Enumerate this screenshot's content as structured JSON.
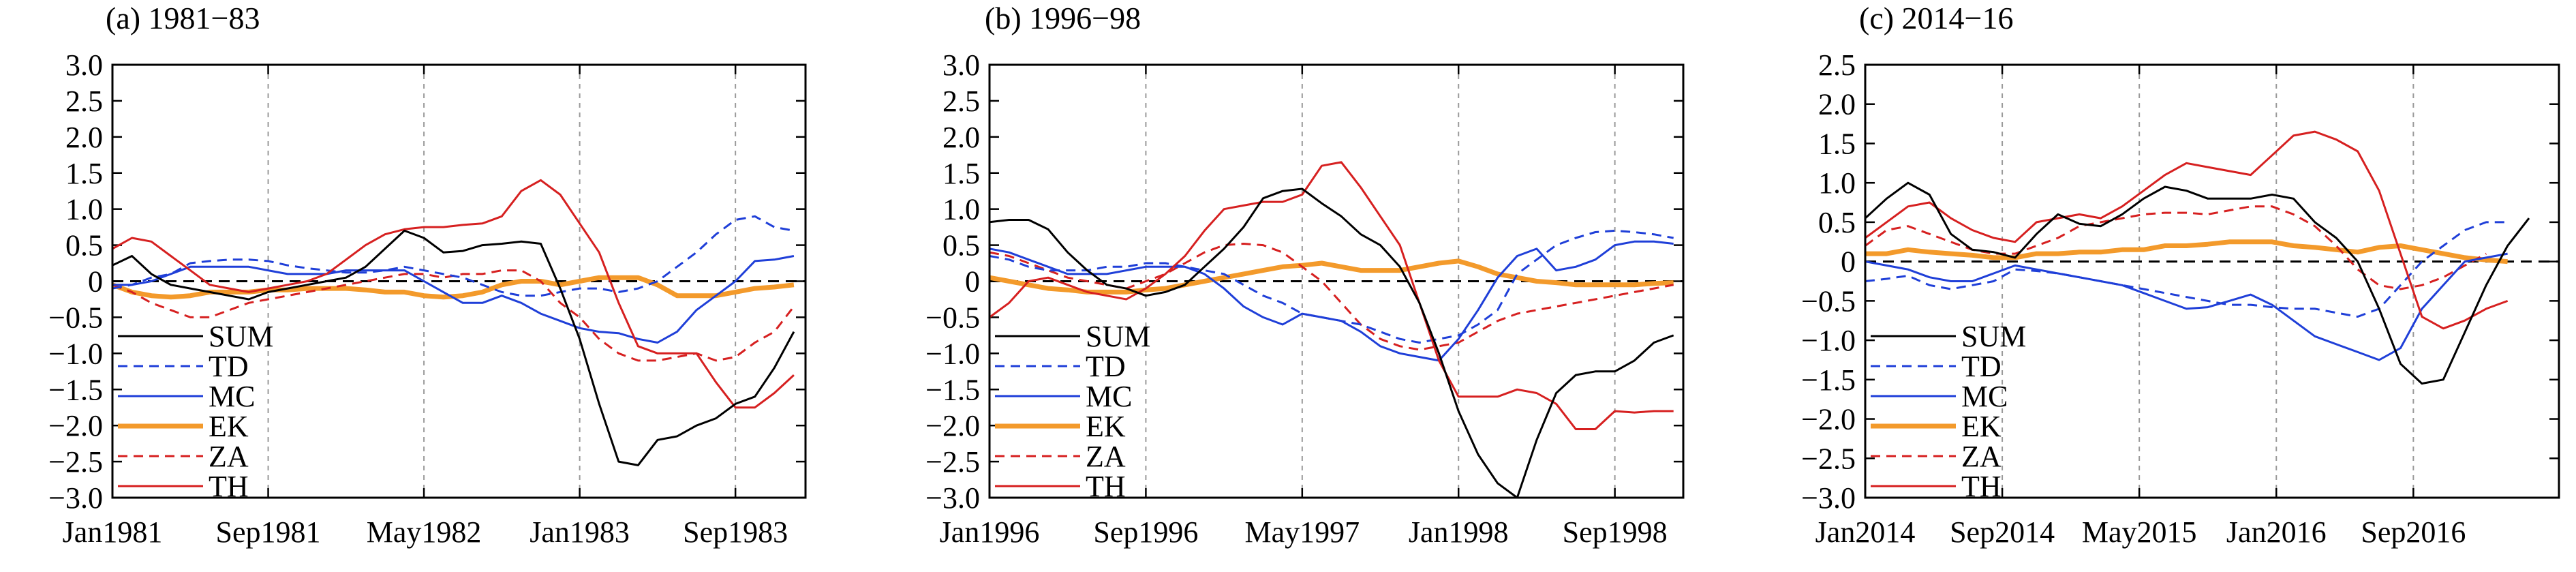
{
  "chart_data": [
    {
      "type": "line",
      "title": "(a) 1981−83",
      "x_start_month": 0,
      "x_end_month": 35.6,
      "xticks": [
        {
          "m": 0,
          "label": "Jan1981"
        },
        {
          "m": 8,
          "label": "Sep1981"
        },
        {
          "m": 16,
          "label": "May1982"
        },
        {
          "m": 24,
          "label": "Jan1983"
        },
        {
          "m": 32,
          "label": "Sep1983"
        }
      ],
      "ylim": [
        -3.0,
        3.0
      ],
      "yticks": [
        "3.0",
        "2.5",
        "2.0",
        "1.5",
        "1.0",
        "0.5",
        "0",
        "−0.5",
        "−1.0",
        "−1.5",
        "−2.0",
        "−2.5",
        "−3.0"
      ],
      "ytick_values": [
        3.0,
        2.5,
        2.0,
        1.5,
        1.0,
        0.5,
        0,
        -0.5,
        -1.0,
        -1.5,
        -2.0,
        -2.5,
        -3.0
      ],
      "series": [
        {
          "name": "SUM",
          "values": [
            0.22,
            0.35,
            0.1,
            -0.05,
            -0.1,
            -0.15,
            -0.2,
            -0.25,
            -0.15,
            -0.1,
            -0.05,
            0,
            0.05,
            0.2,
            0.45,
            0.7,
            0.6,
            0.4,
            0.42,
            0.5,
            0.52,
            0.55,
            0.52,
            -0.1,
            -0.8,
            -1.7,
            -2.5,
            -2.55,
            -2.2,
            -2.15,
            -2.0,
            -1.9,
            -1.7,
            -1.6,
            -1.2,
            -0.7
          ]
        },
        {
          "name": "TD",
          "values": [
            -0.1,
            -0.05,
            0.05,
            0.1,
            0.25,
            0.28,
            0.3,
            0.3,
            0.28,
            0.22,
            0.18,
            0.15,
            0.12,
            0.12,
            0.15,
            0.2,
            0.15,
            0.1,
            0.05,
            -0.05,
            -0.15,
            -0.2,
            -0.2,
            -0.15,
            -0.1,
            -0.1,
            -0.15,
            -0.1,
            0,
            0.2,
            0.4,
            0.65,
            0.85,
            0.9,
            0.75,
            0.7
          ]
        },
        {
          "name": "MC",
          "values": [
            -0.05,
            -0.05,
            0,
            0.1,
            0.2,
            0.2,
            0.2,
            0.2,
            0.15,
            0.1,
            0.1,
            0.1,
            0.15,
            0.15,
            0.15,
            0.15,
            0,
            -0.15,
            -0.3,
            -0.3,
            -0.2,
            -0.3,
            -0.45,
            -0.55,
            -0.65,
            -0.7,
            -0.72,
            -0.8,
            -0.85,
            -0.7,
            -0.4,
            -0.2,
            0,
            0.28,
            0.3,
            0.35
          ]
        },
        {
          "name": "EK",
          "values": [
            -0.05,
            -0.15,
            -0.2,
            -0.22,
            -0.2,
            -0.15,
            -0.15,
            -0.15,
            -0.12,
            -0.12,
            -0.1,
            -0.1,
            -0.1,
            -0.12,
            -0.15,
            -0.15,
            -0.2,
            -0.22,
            -0.2,
            -0.15,
            -0.05,
            0,
            0,
            -0.05,
            0,
            0.05,
            0.05,
            0.05,
            -0.05,
            -0.2,
            -0.2,
            -0.2,
            -0.15,
            -0.1,
            -0.08,
            -0.05
          ]
        },
        {
          "name": "ZA",
          "values": [
            -0.05,
            -0.15,
            -0.3,
            -0.4,
            -0.5,
            -0.5,
            -0.4,
            -0.3,
            -0.25,
            -0.2,
            -0.15,
            -0.1,
            -0.05,
            0,
            0.05,
            0.1,
            0.1,
            0.05,
            0.1,
            0.1,
            0.15,
            0.15,
            0,
            -0.3,
            -0.5,
            -0.8,
            -1.0,
            -1.1,
            -1.1,
            -1.05,
            -1.0,
            -1.1,
            -1.05,
            -0.85,
            -0.7,
            -0.35
          ]
        },
        {
          "name": "TH",
          "values": [
            0.45,
            0.6,
            0.55,
            0.35,
            0.15,
            -0.05,
            -0.1,
            -0.15,
            -0.1,
            -0.05,
            0,
            0.1,
            0.3,
            0.5,
            0.65,
            0.72,
            0.75,
            0.75,
            0.78,
            0.8,
            0.9,
            1.25,
            1.4,
            1.2,
            0.8,
            0.4,
            -0.3,
            -0.9,
            -1.0,
            -1.0,
            -1.0,
            -1.4,
            -1.75,
            -1.75,
            -1.55,
            -1.3
          ]
        }
      ]
    },
    {
      "type": "line",
      "title": "(b) 1996−98",
      "x_start_month": 0,
      "x_end_month": 35.5,
      "xticks": [
        {
          "m": 0,
          "label": "Jan1996"
        },
        {
          "m": 8,
          "label": "Sep1996"
        },
        {
          "m": 16,
          "label": "May1997"
        },
        {
          "m": 24,
          "label": "Jan1998"
        },
        {
          "m": 32,
          "label": "Sep1998"
        }
      ],
      "ylim": [
        -3.0,
        3.0
      ],
      "yticks": [
        "3.0",
        "2.5",
        "2.0",
        "1.5",
        "1.0",
        "0.5",
        "0",
        "−0.5",
        "−1.0",
        "−1.5",
        "−2.0",
        "−2.5",
        "−3.0"
      ],
      "ytick_values": [
        3.0,
        2.5,
        2.0,
        1.5,
        1.0,
        0.5,
        0,
        -0.5,
        -1.0,
        -1.5,
        -2.0,
        -2.5,
        -3.0
      ],
      "series": [
        {
          "name": "SUM",
          "values": [
            0.82,
            0.85,
            0.85,
            0.72,
            0.4,
            0.15,
            -0.05,
            -0.1,
            -0.2,
            -0.15,
            -0.05,
            0.2,
            0.45,
            0.75,
            1.15,
            1.25,
            1.28,
            1.08,
            0.9,
            0.65,
            0.5,
            0.2,
            -0.3,
            -1.0,
            -1.8,
            -2.4,
            -2.8,
            -3.0,
            -2.2,
            -1.55,
            -1.3,
            -1.25,
            -1.25,
            -1.1,
            -0.85,
            -0.75
          ]
        },
        {
          "name": "TD",
          "values": [
            0.35,
            0.3,
            0.2,
            0.15,
            0.15,
            0.15,
            0.2,
            0.2,
            0.25,
            0.25,
            0.2,
            0.15,
            0.1,
            -0.05,
            -0.2,
            -0.3,
            -0.45,
            -0.5,
            -0.55,
            -0.6,
            -0.7,
            -0.8,
            -0.85,
            -0.8,
            -0.75,
            -0.6,
            -0.4,
            0.1,
            0.3,
            0.5,
            0.6,
            0.68,
            0.7,
            0.68,
            0.65,
            0.6
          ]
        },
        {
          "name": "MC",
          "values": [
            0.45,
            0.4,
            0.3,
            0.2,
            0.1,
            0.1,
            0.1,
            0.15,
            0.2,
            0.2,
            0.2,
            0.1,
            -0.1,
            -0.35,
            -0.5,
            -0.6,
            -0.45,
            -0.5,
            -0.55,
            -0.7,
            -0.9,
            -1.0,
            -1.05,
            -1.1,
            -0.8,
            -0.4,
            0.05,
            0.35,
            0.45,
            0.15,
            0.2,
            0.3,
            0.5,
            0.55,
            0.55,
            0.52
          ]
        },
        {
          "name": "EK",
          "values": [
            0.05,
            0,
            -0.05,
            -0.1,
            -0.12,
            -0.15,
            -0.15,
            -0.15,
            -0.12,
            -0.1,
            -0.05,
            0,
            0.05,
            0.1,
            0.15,
            0.2,
            0.22,
            0.25,
            0.2,
            0.15,
            0.15,
            0.15,
            0.2,
            0.25,
            0.28,
            0.2,
            0.1,
            0.05,
            0,
            -0.02,
            -0.05,
            -0.05,
            -0.05,
            -0.05,
            -0.03,
            -0.02
          ]
        },
        {
          "name": "ZA",
          "values": [
            0.4,
            0.35,
            0.25,
            0.15,
            0.05,
            0,
            -0.05,
            -0.1,
            0,
            0.1,
            0.25,
            0.4,
            0.5,
            0.52,
            0.5,
            0.4,
            0.2,
            0,
            -0.3,
            -0.6,
            -0.8,
            -0.9,
            -0.95,
            -0.9,
            -0.85,
            -0.7,
            -0.55,
            -0.45,
            -0.4,
            -0.35,
            -0.3,
            -0.25,
            -0.2,
            -0.15,
            -0.1,
            -0.05
          ]
        },
        {
          "name": "TH",
          "values": [
            -0.5,
            -0.3,
            0,
            0.05,
            -0.05,
            -0.15,
            -0.2,
            -0.25,
            -0.1,
            0.1,
            0.35,
            0.7,
            1.0,
            1.05,
            1.1,
            1.1,
            1.2,
            1.6,
            1.65,
            1.3,
            0.9,
            0.5,
            -0.3,
            -1.1,
            -1.6,
            -1.6,
            -1.6,
            -1.5,
            -1.55,
            -1.7,
            -2.05,
            -2.05,
            -1.8,
            -1.82,
            -1.8,
            -1.8
          ]
        }
      ]
    },
    {
      "type": "line",
      "title": "(c) 2014−16",
      "x_start_month": 0,
      "x_end_month": 40.5,
      "xticks": [
        {
          "m": 0,
          "label": "Jan2014"
        },
        {
          "m": 8,
          "label": "Sep2014"
        },
        {
          "m": 16,
          "label": "May2015"
        },
        {
          "m": 24,
          "label": "Jan2016"
        },
        {
          "m": 32,
          "label": "Sep2016"
        }
      ],
      "ylim": [
        -3.0,
        2.5
      ],
      "yticks": [
        "2.5",
        "2.0",
        "1.5",
        "1.0",
        "0.5",
        "0",
        "−0.5",
        "−1.0",
        "−1.5",
        "−2.0",
        "−2.5",
        "−3.0"
      ],
      "ytick_values": [
        2.5,
        2.0,
        1.5,
        1.0,
        0.5,
        0,
        -0.5,
        -1.0,
        -1.5,
        -2.0,
        -2.5,
        -3.0
      ],
      "series": [
        {
          "name": "SUM",
          "values": [
            0.55,
            0.8,
            1.0,
            0.85,
            0.35,
            0.15,
            0.12,
            0.05,
            0.35,
            0.6,
            0.48,
            0.45,
            0.6,
            0.8,
            0.95,
            0.9,
            0.8,
            0.8,
            0.8,
            0.85,
            0.8,
            0.5,
            0.3,
            0,
            -0.6,
            -1.3,
            -1.55,
            -1.5,
            -0.9,
            -0.3,
            0.2,
            0.55
          ]
        },
        {
          "name": "TD",
          "values": [
            -0.25,
            -0.22,
            -0.18,
            -0.3,
            -0.35,
            -0.3,
            -0.25,
            -0.1,
            -0.12,
            -0.15,
            -0.2,
            -0.25,
            -0.3,
            -0.35,
            -0.4,
            -0.45,
            -0.5,
            -0.55,
            -0.55,
            -0.58,
            -0.6,
            -0.6,
            -0.65,
            -0.7,
            -0.6,
            -0.3,
            0,
            0.2,
            0.4,
            0.5,
            0.5
          ]
        },
        {
          "name": "MC",
          "values": [
            0,
            -0.05,
            -0.1,
            -0.2,
            -0.25,
            -0.25,
            -0.15,
            -0.05,
            -0.1,
            -0.15,
            -0.2,
            -0.25,
            -0.3,
            -0.4,
            -0.5,
            -0.6,
            -0.58,
            -0.5,
            -0.42,
            -0.55,
            -0.75,
            -0.95,
            -1.05,
            -1.15,
            -1.25,
            -1.1,
            -0.6,
            -0.3,
            0,
            0.05,
            0.1
          ]
        },
        {
          "name": "EK",
          "values": [
            0.1,
            0.1,
            0.15,
            0.12,
            0.1,
            0.08,
            0.05,
            0.05,
            0.1,
            0.1,
            0.12,
            0.12,
            0.15,
            0.15,
            0.2,
            0.2,
            0.22,
            0.25,
            0.25,
            0.25,
            0.2,
            0.18,
            0.15,
            0.12,
            0.18,
            0.2,
            0.15,
            0.1,
            0.05,
            0.02,
            0
          ]
        },
        {
          "name": "ZA",
          "values": [
            0.2,
            0.4,
            0.45,
            0.35,
            0.25,
            0.15,
            0.1,
            0.1,
            0.2,
            0.3,
            0.45,
            0.5,
            0.55,
            0.6,
            0.62,
            0.62,
            0.6,
            0.65,
            0.7,
            0.7,
            0.6,
            0.45,
            0.2,
            -0.1,
            -0.3,
            -0.35,
            -0.3,
            -0.2,
            -0.05,
            0.1
          ]
        },
        {
          "name": "TH",
          "values": [
            0.3,
            0.5,
            0.7,
            0.75,
            0.55,
            0.4,
            0.3,
            0.25,
            0.5,
            0.55,
            0.6,
            0.55,
            0.7,
            0.9,
            1.1,
            1.25,
            1.2,
            1.15,
            1.1,
            1.35,
            1.6,
            1.65,
            1.55,
            1.4,
            0.9,
            0.1,
            -0.7,
            -0.85,
            -0.75,
            -0.6,
            -0.5
          ]
        }
      ],
      "series_start_month": {
        "SUM": 0,
        "TD": 0,
        "MC": 0,
        "EK": 0,
        "ZA": 0,
        "TH": 0
      },
      "series_month_step": {
        "SUM": 1.25,
        "TD": 1.25,
        "MC": 1.25,
        "EK": 1.25,
        "ZA": 1.25,
        "TH": 1.25
      }
    }
  ],
  "legend": [
    {
      "name": "SUM",
      "label": "SUM",
      "color": "#000000",
      "dash": "none",
      "width": 3
    },
    {
      "name": "TD",
      "label": "TD",
      "color": "#1f3fd8",
      "dash": "14 9",
      "width": 3
    },
    {
      "name": "MC",
      "label": "MC",
      "color": "#1f3fd8",
      "dash": "none",
      "width": 3
    },
    {
      "name": "EK",
      "label": "EK",
      "color": "#f39a2b",
      "dash": "none",
      "width": 7
    },
    {
      "name": "ZA",
      "label": "ZA",
      "color": "#d62020",
      "dash": "14 9",
      "width": 3
    },
    {
      "name": "TH",
      "label": "TH",
      "color": "#d62020",
      "dash": "none",
      "width": 3
    }
  ]
}
